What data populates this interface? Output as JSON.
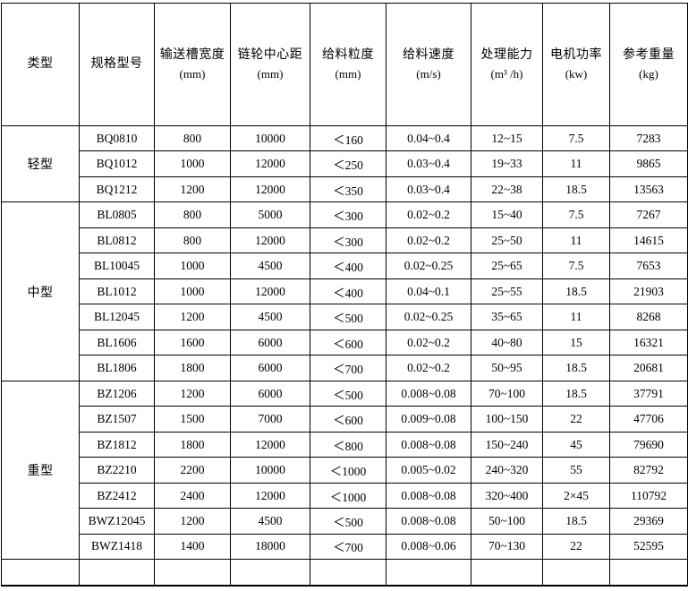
{
  "table": {
    "columns": [
      {
        "id": "type",
        "label": "类型",
        "unit": ""
      },
      {
        "id": "model",
        "label": "规格型号",
        "unit": ""
      },
      {
        "id": "trough-width",
        "label": "输送槽宽度",
        "unit": "(mm)"
      },
      {
        "id": "sprocket-center-distance",
        "label": "链轮中心距",
        "unit": "(mm)"
      },
      {
        "id": "feed-size",
        "label": "给料粒度",
        "unit": "(mm)"
      },
      {
        "id": "feed-speed",
        "label": "给料速度",
        "unit": "(m/s)"
      },
      {
        "id": "capacity",
        "label": "处理能力",
        "unit": "(m³ /h)"
      },
      {
        "id": "motor-power",
        "label": "电机功率",
        "unit": "(kw)"
      },
      {
        "id": "reference-weight",
        "label": "参考重量",
        "unit": "(kg)"
      }
    ],
    "groups": [
      {
        "type": "轻型",
        "rows": [
          [
            "BQ0810",
            "800",
            "10000",
            "＜160",
            "0.04~0.4",
            "12~15",
            "7.5",
            "7283"
          ],
          [
            "BQ1012",
            "1000",
            "12000",
            "＜250",
            "0.03~0.4",
            "19~33",
            "11",
            "9865"
          ],
          [
            "BQ1212",
            "1200",
            "12000",
            "＜350",
            "0.03~0.4",
            "22~38",
            "18.5",
            "13563"
          ]
        ]
      },
      {
        "type": "中型",
        "rows": [
          [
            "BL0805",
            "800",
            "5000",
            "＜300",
            "0.02~0.2",
            "15~40",
            "7.5",
            "7267"
          ],
          [
            "BL0812",
            "800",
            "12000",
            "＜300",
            "0.02~0.2",
            "25~50",
            "11",
            "14615"
          ],
          [
            "BL10045",
            "1000",
            "4500",
            "＜400",
            "0.02~0.25",
            "25~65",
            "7.5",
            "7653"
          ],
          [
            "BL1012",
            "1000",
            "12000",
            "＜400",
            "0.04~0.1",
            "25~55",
            "18.5",
            "21903"
          ],
          [
            "BL12045",
            "1200",
            "4500",
            "＜500",
            "0.02~0.25",
            "35~65",
            "11",
            "8268"
          ],
          [
            "BL1606",
            "1600",
            "6000",
            "＜600",
            "0.02~0.2",
            "40~80",
            "15",
            "16321"
          ],
          [
            "BL1806",
            "1800",
            "6000",
            "＜700",
            "0.02~0.2",
            "50~95",
            "18.5",
            "20681"
          ]
        ]
      },
      {
        "type": "重型",
        "rows": [
          [
            "BZ1206",
            "1200",
            "6000",
            "＜500",
            "0.008~0.08",
            "70~100",
            "18.5",
            "37791"
          ],
          [
            "BZ1507",
            "1500",
            "7000",
            "＜600",
            "0.009~0.08",
            "100~150",
            "22",
            "47706"
          ],
          [
            "BZ1812",
            "1800",
            "12000",
            "＜800",
            "0.008~0.08",
            "150~240",
            "45",
            "79690"
          ],
          [
            "BZ2210",
            "2200",
            "10000",
            "＜1000",
            "0.005~0.02",
            "240~320",
            "55",
            "82792"
          ],
          [
            "BZ2412",
            "2400",
            "12000",
            "＜1000",
            "0.008~0.08",
            "320~400",
            "2×45",
            "110792"
          ],
          [
            "BWZ12045",
            "1200",
            "4500",
            "＜500",
            "0.008~0.08",
            "50~100",
            "18.5",
            "29369"
          ],
          [
            "BWZ1418",
            "1400",
            "18000",
            "＜700",
            "0.008~0.06",
            "70~130",
            "22",
            "52595"
          ]
        ]
      }
    ],
    "empty_row": true
  }
}
